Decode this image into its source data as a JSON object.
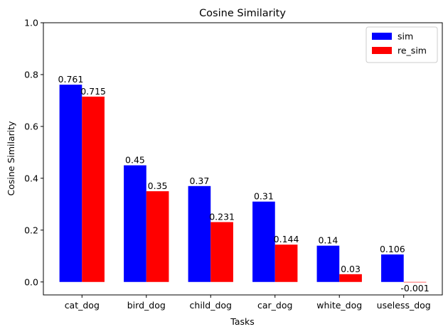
{
  "chart_data": {
    "type": "bar",
    "title": "Cosine Similarity",
    "xlabel": "Tasks",
    "ylabel": "Cosine Similarity",
    "categories": [
      "cat_dog",
      "bird_dog",
      "child_dog",
      "car_dog",
      "white_dog",
      "useless_dog"
    ],
    "series": [
      {
        "name": "sim",
        "color": "#0000ff",
        "values": [
          0.761,
          0.45,
          0.37,
          0.31,
          0.14,
          0.106
        ],
        "labels": [
          "0.761",
          "0.45",
          "0.37",
          "0.31",
          "0.14",
          "0.106"
        ]
      },
      {
        "name": "re_sim",
        "color": "#ff0000",
        "values": [
          0.715,
          0.35,
          0.231,
          0.144,
          0.03,
          -0.001
        ],
        "labels": [
          "0.715",
          "0.35",
          "0.231",
          "0.144",
          "0.03",
          "-0.001"
        ]
      }
    ],
    "ylim": [
      -0.05,
      1.0
    ],
    "yticks": [
      0.0,
      0.2,
      0.4,
      0.6,
      0.8,
      1.0
    ],
    "ytick_labels": [
      "0.0",
      "0.2",
      "0.4",
      "0.6",
      "0.8",
      "1.0"
    ],
    "legend_position": "top-right",
    "grid": false
  }
}
